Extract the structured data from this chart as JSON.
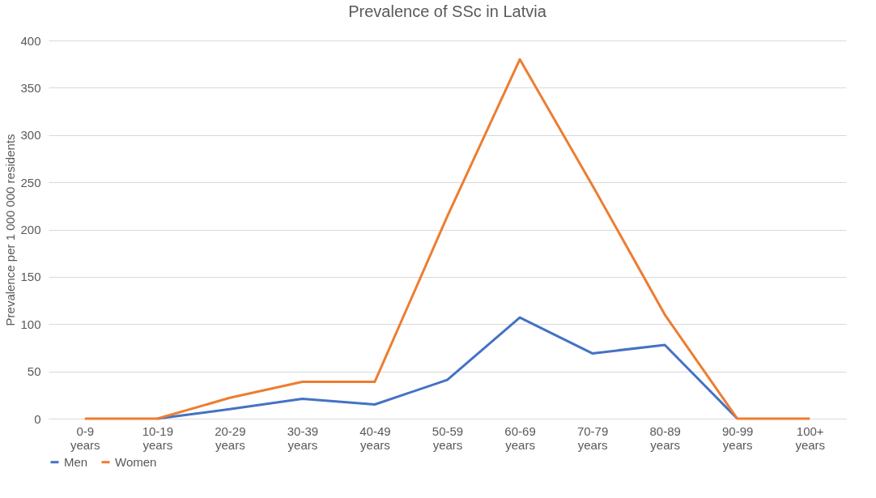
{
  "chart_data": {
    "type": "line",
    "title": "Prevalence of SSc in Latvia",
    "ylabel": "Prevalence per 1 000 000 residents",
    "categories": [
      "0-9 years",
      "10-19 years",
      "20-29 years",
      "30-39 years",
      "40-49 years",
      "50-59 years",
      "60-69 years",
      "70-79 years",
      "80-89 years",
      "90-99 years",
      "100+ years"
    ],
    "series": [
      {
        "name": "Men",
        "color": "#4472c4",
        "values": [
          null,
          0,
          10,
          21,
          15,
          41,
          107,
          69,
          78,
          0,
          null
        ]
      },
      {
        "name": "Women",
        "color": "#ed7d31",
        "values": [
          0,
          0,
          22,
          39,
          39,
          214,
          380,
          247,
          110,
          0,
          0
        ]
      }
    ],
    "ylim": [
      0,
      400
    ],
    "yticks": [
      0,
      50,
      100,
      150,
      200,
      250,
      300,
      350,
      400
    ],
    "grid": "y",
    "legend": "bottom",
    "marker": "none",
    "line_style": "solid"
  }
}
